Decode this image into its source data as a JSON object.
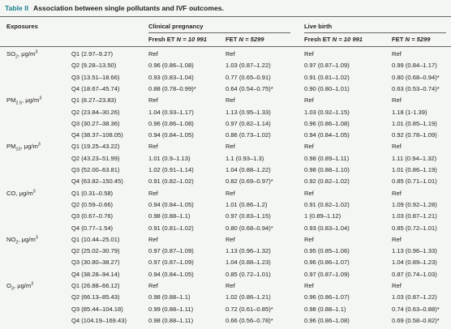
{
  "table": {
    "number": "Table II",
    "title": "Association between single pollutants and IVF outcomes.",
    "header": {
      "exposures": "Exposures",
      "groups": [
        "Clinical pregnancy",
        "Live birth"
      ],
      "columns": [
        {
          "label": "Fresh ET",
          "n": "N = 10 991"
        },
        {
          "label": "FET",
          "n": "N = 5299"
        },
        {
          "label": "Fresh ET",
          "n": "N = 10 991"
        },
        {
          "label": "FET",
          "n": "N = 5299"
        }
      ]
    },
    "groups": [
      {
        "exposure": {
          "base": "SO",
          "sub": "2",
          "unit": ", μg/m",
          "sup": "3"
        },
        "rows": [
          {
            "quartile": "Q1 (2.97–9.27)",
            "values": [
              "Ref",
              "Ref",
              "Ref",
              "Ref"
            ]
          },
          {
            "quartile": "Q2 (9.28–13.50)",
            "values": [
              "0.96 (0.86–1.08)",
              "1.03 (0.87–1.22)",
              "0.97 (0.87–1.09)",
              "0.99 (0.84–1.17)"
            ]
          },
          {
            "quartile": "Q3 (13.51–18.66)",
            "values": [
              "0.93 (0.83–1.04)",
              "0.77 (0.65–0.91)",
              "0.91 (0.81–1.02)",
              "0.80 (0.68–0.94)*"
            ]
          },
          {
            "quartile": "Q4 (18.67–45.74)",
            "values": [
              "0.88 (0.78–0.99)*",
              "0.64 (0.54–0.75)*",
              "0.90 (0.80–1.01)",
              "0.63 (0.53–0.74)*"
            ]
          }
        ]
      },
      {
        "exposure": {
          "base": "PM",
          "sub": "2.5",
          "unit": ", μg/m",
          "sup": "3"
        },
        "rows": [
          {
            "quartile": "Q1 (8.27–23.83)",
            "values": [
              "Ref",
              "Ref",
              "Ref",
              "Ref"
            ]
          },
          {
            "quartile": "Q2 (23.84–30.26)",
            "values": [
              "1.04 (0.93–1.17)",
              "1.13 (0.95–1.33)",
              "1.03 (0.92–1.15)",
              "1.18 (1-1.39)"
            ]
          },
          {
            "quartile": "Q3 (30.27–38.36)",
            "values": [
              "0.96 (0.86–1.08)",
              "0.97 (0.82–1.14)",
              "0.96 (0.86–1.08)",
              "1.01 (0.85–1.19)"
            ]
          },
          {
            "quartile": "Q4 (38.37–108.05)",
            "values": [
              "0.94 (0.84–1.05)",
              "0.86 (0.73–1.02)",
              "0.94 (0.84–1.05)",
              "0.92 (0.78–1.09)"
            ]
          }
        ]
      },
      {
        "exposure": {
          "base": "PM",
          "sub": "10",
          "unit": ", μg/m",
          "sup": "3"
        },
        "rows": [
          {
            "quartile": "Q1 (19.25–43.22)",
            "values": [
              "Ref",
              "Ref",
              "Ref",
              "Ref"
            ]
          },
          {
            "quartile": "Q2 (43.23–51.99)",
            "values": [
              "1.01 (0.9–1.13)",
              "1.1 (0.93–1.3)",
              "0.98 (0.89–1.11)",
              "1.11 (0.94–1.32)"
            ]
          },
          {
            "quartile": "Q3 (52.00–63.81)",
            "values": [
              "1.02 (0.91–1.14)",
              "1.04 (0.88–1.22)",
              "0.98 (0.88–1.10)",
              "1.01 (0.86–1.19)"
            ]
          },
          {
            "quartile": "Q4 (63.82–150.45)",
            "values": [
              "0.91 (0.82–1.02)",
              "0.82 (0.69–0.97)*",
              "0.92 (0.82–1.02)",
              "0.85 (0.71–1.01)"
            ]
          }
        ]
      },
      {
        "exposure": {
          "base": "CO",
          "sub": "",
          "unit": ", μg/m",
          "sup": "3"
        },
        "rows": [
          {
            "quartile": "Q1 (0.31–0.58)",
            "values": [
              "Ref",
              "Ref",
              "Ref",
              "Ref"
            ]
          },
          {
            "quartile": "Q2 (0.59–0.66)",
            "values": [
              "0.94 (0.84–1.05)",
              "1.01 (0.86–1.2)",
              "0.91 (0.82–1.02)",
              "1.09 (0.92–1.28)"
            ]
          },
          {
            "quartile": "Q3 (0.67–0.76)",
            "values": [
              "0.98 (0.88–1.1)",
              "0.97 (0.83–1.15)",
              "1 (0.89–1.12)",
              "1.03 (0.87–1.21)"
            ]
          },
          {
            "quartile": "Q4 (0.77–1.54)",
            "values": [
              "0.91 (0.81–1.02)",
              "0.80 (0.68–0.94)*",
              "0.93 (0.83–1.04)",
              "0.85 (0.72–1.01)"
            ]
          }
        ]
      },
      {
        "exposure": {
          "base": "NO",
          "sub": "2",
          "unit": ", μg/m",
          "sup": "3"
        },
        "rows": [
          {
            "quartile": "Q1 (10.44–25.01)",
            "values": [
              "Ref",
              "Ref",
              "Ref",
              "Ref"
            ]
          },
          {
            "quartile": "Q2 (25.02–30.79)",
            "values": [
              "0.97 (0.87–1.09)",
              "1.13 (0.96–1.32)",
              "0.95 (0.85–1.06)",
              "1.13 (0.96–1.33)"
            ]
          },
          {
            "quartile": "Q3 (30.80–38.27)",
            "values": [
              "0.97 (0.87–1.09)",
              "1.04 (0.88–1.23)",
              "0.96 (0.86–1.07)",
              "1.04 (0.89–1.23)"
            ]
          },
          {
            "quartile": "Q4 (38.28–94.14)",
            "values": [
              "0.94 (0.84–1.05)",
              "0.85 (0.72–1.01)",
              "0.97 (0.87–1.09)",
              "0.87 (0.74–1.03)"
            ]
          }
        ]
      },
      {
        "exposure": {
          "base": "O",
          "sub": "3",
          "unit": ", μg/m",
          "sup": "3"
        },
        "rows": [
          {
            "quartile": "Q1 (26.88–66.12)",
            "values": [
              "Ref",
              "Ref",
              "Ref",
              "Ref"
            ]
          },
          {
            "quartile": "Q2 (66.13–85.43)",
            "values": [
              "0.98 (0.88–1.1)",
              "1.02 (0.86–1.21)",
              "0.96 (0.86–1.07)",
              "1.03 (0.87–1.22)"
            ]
          },
          {
            "quartile": "Q3 (85.44–104.18)",
            "values": [
              "0.99 (0.88–1.11)",
              "0.72 (0.61–0.85)*",
              "0.98 (0.88–1.1)",
              "0.74 (0.63–0.88)*"
            ]
          },
          {
            "quartile": "Q4 (104.19–169.43)",
            "values": [
              "0.98 (0.88–1.11)",
              "0.66 (0.56–0.78)*",
              "0.96 (0.86–1.08)",
              "0.69 (0.58–0.82)*"
            ]
          }
        ]
      }
    ]
  }
}
